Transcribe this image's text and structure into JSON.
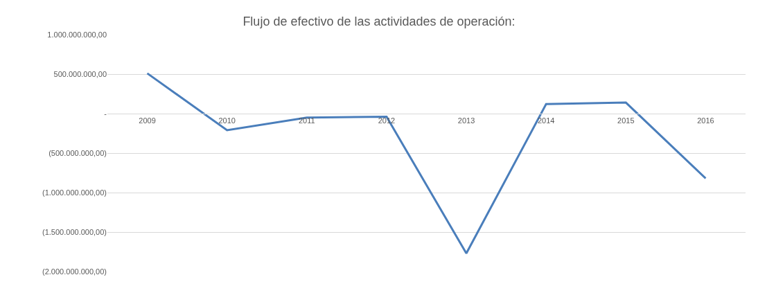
{
  "chart_data": {
    "type": "line",
    "title": "Flujo de efectivo de las actividades de operación:",
    "categories": [
      "2009",
      "2010",
      "2011",
      "2012",
      "2013",
      "2014",
      "2015",
      "2016"
    ],
    "series": [
      {
        "color": "#4a7ebb",
        "values": [
          510000000,
          -210000000,
          -50000000,
          -40000000,
          -1770000000,
          120000000,
          140000000,
          -820000000
        ]
      }
    ],
    "ylim": [
      -2000000000,
      1000000000
    ],
    "yticks": [
      {
        "value": -2000000000,
        "label": "(2.000.000.000,00)"
      },
      {
        "value": -1500000000,
        "label": "(1.500.000.000,00)"
      },
      {
        "value": -1000000000,
        "label": "(1.000.000.000,00)"
      },
      {
        "value": -500000000,
        "label": "(500.000.000,00)"
      },
      {
        "value": 0,
        "label": "-"
      },
      {
        "value": 500000000,
        "label": "500.000.000,00"
      },
      {
        "value": 1000000000,
        "label": "1.000.000.000,00"
      }
    ],
    "grid": "y",
    "marker": "none",
    "line_style": "solid"
  }
}
